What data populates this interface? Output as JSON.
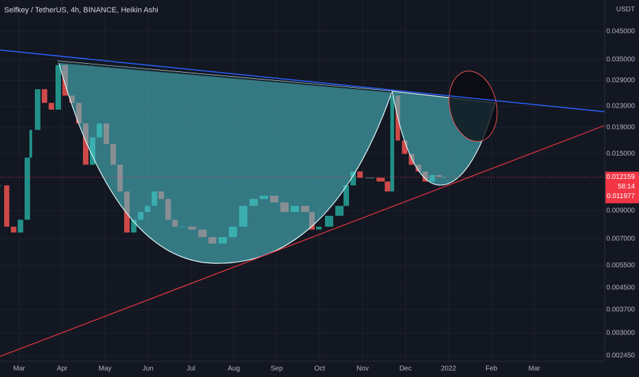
{
  "chart_data": {
    "type": "candlestick",
    "title": "Selfkey / TetherUS, 4h, BINANCE, Heikin Ashi",
    "currency": "USDT",
    "log_scale": true,
    "grid": true,
    "up_color": "#26a69a",
    "down_color": "#ef5350",
    "x": [
      -0.44,
      -0.29,
      -0.13,
      0.03,
      0.19,
      0.27,
      0.43,
      0.59,
      0.75,
      0.91,
      1.07,
      1.23,
      1.39,
      1.55,
      1.71,
      1.87,
      2.03,
      2.19,
      2.35,
      2.51,
      2.67,
      2.83,
      2.99,
      3.15,
      3.31,
      3.47,
      3.63,
      3.79,
      4.03,
      4.27,
      4.5,
      4.74,
      4.98,
      5.22,
      5.46,
      5.7,
      5.94,
      6.18,
      6.42,
      6.66,
      6.82,
      6.98,
      7.22,
      7.46,
      7.62,
      7.78,
      7.94,
      8.18,
      8.42,
      8.58,
      8.69,
      8.82,
      8.98,
      9.14,
      9.3,
      9.46,
      9.62,
      9.78,
      9.9
    ],
    "values": [
      0.0113,
      0.0078,
      0.0074,
      0.0083,
      0.0145,
      0.0186,
      0.0268,
      0.0237,
      0.0223,
      0.0333,
      0.0253,
      0.0237,
      0.0197,
      0.0136,
      0.0174,
      0.0197,
      0.0164,
      0.0136,
      0.0107,
      0.0074,
      0.0083,
      0.0089,
      0.0094,
      0.0107,
      0.01,
      0.0083,
      0.0078,
      0.0078,
      0.0076,
      0.0071,
      0.0067,
      0.0071,
      0.0078,
      0.0094,
      0.01,
      0.0103,
      0.0097,
      0.0089,
      0.0094,
      0.0089,
      0.0076,
      0.0078,
      0.0086,
      0.0094,
      0.0113,
      0.0128,
      0.0121,
      0.0121,
      0.0117,
      0.0107,
      0.0253,
      0.0169,
      0.015,
      0.0136,
      0.0128,
      0.0117,
      0.0124,
      0.0122,
      0.0122
    ],
    "xlim": [
      -0.447,
      13.64
    ],
    "xticks": [
      {
        "value": 0,
        "label": "Mar"
      },
      {
        "value": 1,
        "label": "Apr"
      },
      {
        "value": 2,
        "label": "May"
      },
      {
        "value": 3,
        "label": "Jun"
      },
      {
        "value": 4,
        "label": "Jul"
      },
      {
        "value": 5,
        "label": "Aug"
      },
      {
        "value": 6,
        "label": "Sep"
      },
      {
        "value": 7,
        "label": "Oct"
      },
      {
        "value": 8,
        "label": "Nov"
      },
      {
        "value": 9,
        "label": "Dec"
      },
      {
        "value": 10,
        "label": "2022"
      },
      {
        "value": 11,
        "label": "Feb"
      },
      {
        "value": 12,
        "label": "Mar"
      }
    ],
    "ylim": [
      0.00233,
      0.0597
    ],
    "yticks": [
      {
        "value": 0.045,
        "label": "0.045000"
      },
      {
        "value": 0.035,
        "label": "0.035000"
      },
      {
        "value": 0.029,
        "label": "0.029000"
      },
      {
        "value": 0.023,
        "label": "0.023000"
      },
      {
        "value": 0.019,
        "label": "0.019000"
      },
      {
        "value": 0.015,
        "label": "0.015000"
      },
      {
        "value": 0.009,
        "label": "0.009000"
      },
      {
        "value": 0.007,
        "label": "0.007000"
      },
      {
        "value": 0.0055,
        "label": "0.005500"
      },
      {
        "value": 0.0045,
        "label": "0.004500"
      },
      {
        "value": 0.0037,
        "label": "0.003700"
      },
      {
        "value": 0.003,
        "label": "0.003000"
      },
      {
        "value": 0.00245,
        "label": "0.002450"
      }
    ],
    "last_price": 0.012159,
    "countdown": "58:14",
    "second_price": 0.011977
  }
}
